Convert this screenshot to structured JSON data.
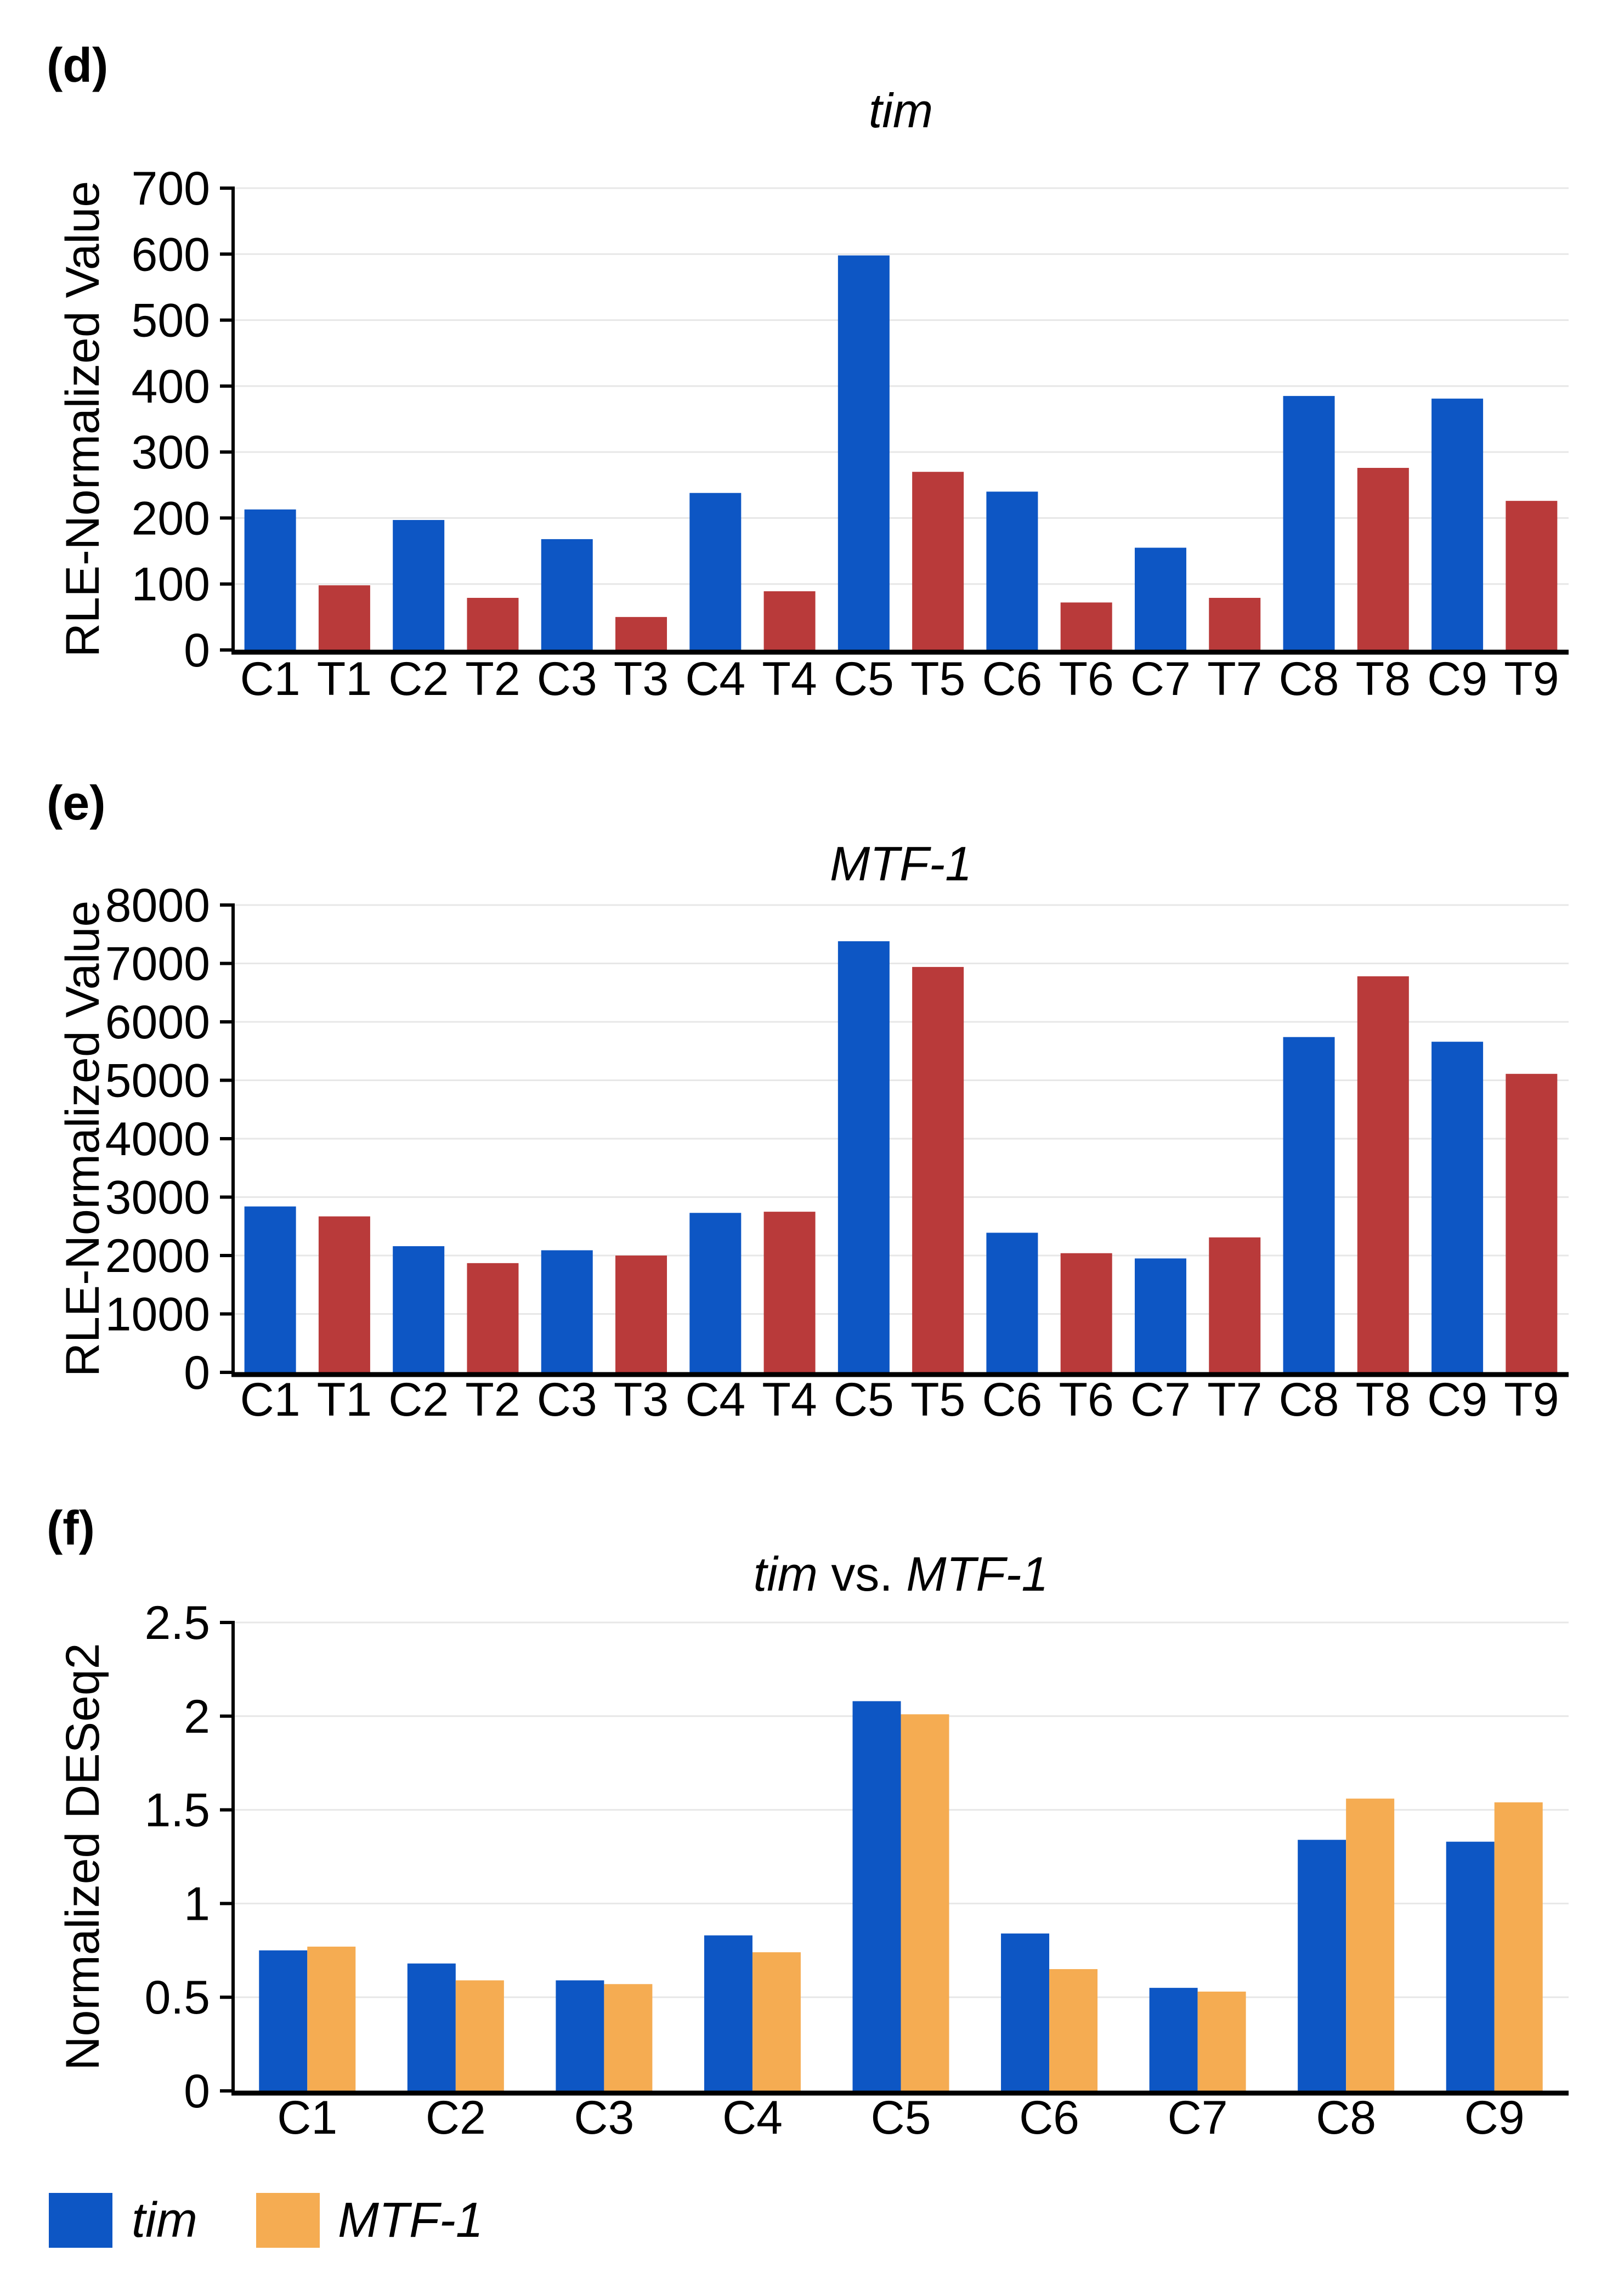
{
  "panels": {
    "d": {
      "label": "(d)"
    },
    "e": {
      "label": "(e)"
    },
    "f": {
      "label": "(f)"
    }
  },
  "colors": {
    "blue": "#0D56C4",
    "red": "#B93A3A",
    "orange": "#F5AC52",
    "gridline": "#E7E7E7",
    "axis": "#000000"
  },
  "chart_data": [
    {
      "id": "d",
      "type": "bar",
      "title_parts": [
        {
          "text": "tim",
          "italic": true
        }
      ],
      "ylabel": "RLE-Normalized Value",
      "xlabel": "",
      "grid": true,
      "ylim": [
        0,
        700
      ],
      "yticks": [
        0,
        100,
        200,
        300,
        400,
        500,
        600,
        700
      ],
      "ytick_labels": [
        "0",
        "100",
        "200",
        "300",
        "400",
        "500",
        "600",
        "700"
      ],
      "categories": [
        "C1",
        "T1",
        "C2",
        "T2",
        "C3",
        "T3",
        "C4",
        "T4",
        "C5",
        "T5",
        "C6",
        "T6",
        "C7",
        "T7",
        "C8",
        "T8",
        "C9",
        "T9"
      ],
      "values": [
        213,
        98,
        197,
        79,
        168,
        50,
        238,
        89,
        598,
        270,
        240,
        72,
        155,
        79,
        385,
        276,
        381,
        226
      ],
      "bar_colors": [
        "#0D56C4",
        "#B93A3A",
        "#0D56C4",
        "#B93A3A",
        "#0D56C4",
        "#B93A3A",
        "#0D56C4",
        "#B93A3A",
        "#0D56C4",
        "#B93A3A",
        "#0D56C4",
        "#B93A3A",
        "#0D56C4",
        "#B93A3A",
        "#0D56C4",
        "#B93A3A",
        "#0D56C4",
        "#B93A3A"
      ]
    },
    {
      "id": "e",
      "type": "bar",
      "title_parts": [
        {
          "text": "MTF-1",
          "italic": true
        }
      ],
      "ylabel": "RLE-Normalized Value",
      "xlabel": "",
      "grid": true,
      "ylim": [
        0,
        8000
      ],
      "yticks": [
        0,
        1000,
        2000,
        3000,
        4000,
        5000,
        6000,
        7000,
        8000
      ],
      "ytick_labels": [
        "0",
        "1000",
        "2000",
        "3000",
        "4000",
        "5000",
        "6000",
        "7000",
        "8000"
      ],
      "categories": [
        "C1",
        "T1",
        "C2",
        "T2",
        "C3",
        "T3",
        "C4",
        "T4",
        "C5",
        "T5",
        "C6",
        "T6",
        "C7",
        "T7",
        "C8",
        "T8",
        "C9",
        "T9"
      ],
      "values": [
        2840,
        2670,
        2160,
        1870,
        2090,
        2000,
        2730,
        2750,
        7380,
        6940,
        2390,
        2040,
        1950,
        2310,
        5740,
        6780,
        5660,
        5110
      ],
      "bar_colors": [
        "#0D56C4",
        "#B93A3A",
        "#0D56C4",
        "#B93A3A",
        "#0D56C4",
        "#B93A3A",
        "#0D56C4",
        "#B93A3A",
        "#0D56C4",
        "#B93A3A",
        "#0D56C4",
        "#B93A3A",
        "#0D56C4",
        "#B93A3A",
        "#0D56C4",
        "#B93A3A",
        "#0D56C4",
        "#B93A3A"
      ]
    },
    {
      "id": "f",
      "type": "bar",
      "title_parts": [
        {
          "text": "tim",
          "italic": true
        },
        {
          "text": " vs. ",
          "italic": false
        },
        {
          "text": "MTF-1",
          "italic": true
        }
      ],
      "ylabel": "Normalized DESeq2",
      "xlabel": "",
      "grid": true,
      "ylim": [
        0,
        2.5
      ],
      "yticks": [
        0,
        0.5,
        1,
        1.5,
        2,
        2.5
      ],
      "ytick_labels": [
        "0",
        "0.5",
        "1",
        "1.5",
        "2",
        "2.5"
      ],
      "categories": [
        "C1",
        "C2",
        "C3",
        "C4",
        "C5",
        "C6",
        "C7",
        "C8",
        "C9"
      ],
      "series": [
        {
          "name": "tim",
          "color": "#0D56C4",
          "values": [
            0.75,
            0.68,
            0.59,
            0.83,
            2.08,
            0.84,
            0.55,
            1.34,
            1.33
          ]
        },
        {
          "name": "MTF-1",
          "color": "#F5AC52",
          "values": [
            0.77,
            0.59,
            0.57,
            0.74,
            2.01,
            0.65,
            0.53,
            1.56,
            1.54
          ]
        }
      ]
    }
  ],
  "legend": {
    "position": "bottom-left",
    "items": [
      {
        "label": "tim",
        "color": "#0D56C4"
      },
      {
        "label": "MTF-1",
        "color": "#F5AC52"
      }
    ]
  }
}
